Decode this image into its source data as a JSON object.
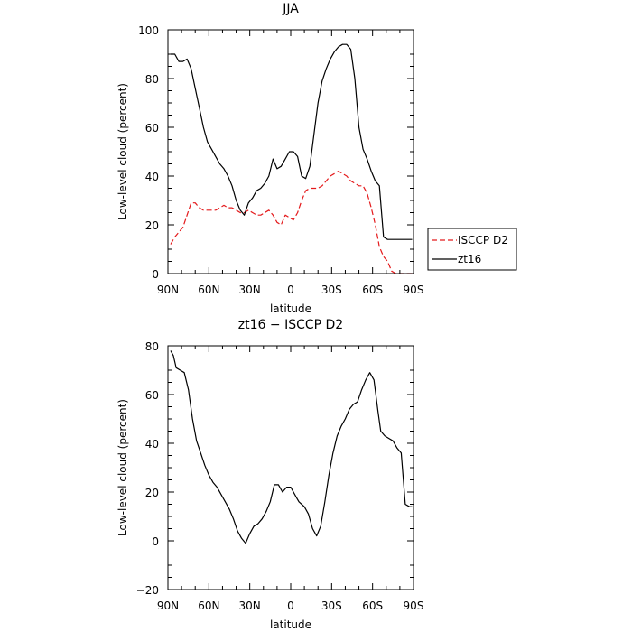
{
  "chart_data": [
    {
      "type": "line",
      "title": "JJA",
      "xlabel": "latitude",
      "ylabel": "Low-level cloud (percent)",
      "xlim": [
        90,
        -90
      ],
      "ylim": [
        0,
        100
      ],
      "x_ticks": [
        90,
        60,
        30,
        0,
        -30,
        -60,
        -90
      ],
      "x_tick_labels": [
        "90N",
        "60N",
        "30N",
        "0",
        "30S",
        "60S",
        "90S"
      ],
      "y_ticks": [
        0,
        20,
        40,
        60,
        80,
        100
      ],
      "y_tick_labels": [
        "0",
        "20",
        "40",
        "60",
        "80",
        "100"
      ],
      "legend_position": "right",
      "series": [
        {
          "name": "ISCCP D2",
          "color": "#e41a1c",
          "dash": "dashed",
          "x": [
            88,
            85,
            82,
            79,
            76,
            73,
            70,
            67,
            64,
            61,
            58,
            55,
            52,
            49,
            46,
            43,
            40,
            37,
            34,
            31,
            28,
            25,
            22,
            19,
            16,
            13,
            10,
            7,
            4,
            1,
            -2,
            -5,
            -8,
            -11,
            -14,
            -17,
            -20,
            -23,
            -26,
            -29,
            -32,
            -35,
            -38,
            -41,
            -44,
            -47,
            -50,
            -53,
            -56,
            -59,
            -62,
            -65,
            -68,
            -71,
            -74,
            -77,
            -80,
            -83,
            -86,
            -89
          ],
          "y": [
            12,
            15,
            17,
            19,
            24,
            29,
            29,
            27,
            26,
            26,
            26,
            26,
            27,
            28,
            27,
            27,
            26,
            25,
            25,
            26,
            25,
            24,
            24,
            25,
            26,
            24,
            21,
            20,
            24,
            23,
            22,
            25,
            30,
            34,
            35,
            35,
            35,
            36,
            38,
            40,
            41,
            42,
            41,
            40,
            38,
            37,
            36,
            36,
            33,
            27,
            20,
            11,
            7,
            5,
            1,
            0,
            0,
            0,
            0,
            0
          ]
        },
        {
          "name": "zt16",
          "color": "#000000",
          "dash": "solid",
          "x": [
            88,
            85,
            82,
            79,
            76,
            73,
            70,
            67,
            64,
            61,
            58,
            55,
            52,
            49,
            46,
            43,
            40,
            37,
            34,
            31,
            28,
            25,
            22,
            19,
            16,
            13,
            10,
            7,
            4,
            1,
            -2,
            -5,
            -8,
            -11,
            -14,
            -17,
            -20,
            -23,
            -26,
            -29,
            -32,
            -35,
            -38,
            -41,
            -44,
            -47,
            -50,
            -53,
            -56,
            -59,
            -62,
            -65,
            -68,
            -71,
            -74,
            -77,
            -80,
            -83,
            -86,
            -89
          ],
          "y": [
            90,
            90,
            87,
            87,
            88,
            84,
            76,
            68,
            60,
            54,
            51,
            48,
            45,
            43,
            40,
            36,
            30,
            26,
            24,
            29,
            31,
            34,
            35,
            37,
            40,
            47,
            43,
            44,
            47,
            50,
            50,
            48,
            40,
            39,
            44,
            57,
            70,
            79,
            84,
            88,
            91,
            93,
            94,
            94,
            92,
            80,
            60,
            51,
            47,
            42,
            38,
            36,
            15,
            14,
            14,
            14,
            14,
            14,
            14,
            14
          ]
        }
      ]
    },
    {
      "type": "line",
      "title": "zt16 − ISCCP D2",
      "xlabel": "latitude",
      "ylabel": "Low-level cloud (percent)",
      "xlim": [
        90,
        -90
      ],
      "ylim": [
        -20,
        80
      ],
      "x_ticks": [
        90,
        60,
        30,
        0,
        -30,
        -60,
        -90
      ],
      "x_tick_labels": [
        "90N",
        "60N",
        "30N",
        "0",
        "30S",
        "60S",
        "90S"
      ],
      "y_ticks": [
        -20,
        0,
        20,
        40,
        60,
        80
      ],
      "y_tick_labels": [
        "−20",
        "0",
        "20",
        "40",
        "60",
        "80"
      ],
      "series": [
        {
          "color": "#000000",
          "dash": "solid",
          "x": [
            88,
            86,
            84,
            81,
            78,
            75,
            72,
            69,
            66,
            63,
            60,
            57,
            54,
            51,
            48,
            45,
            42,
            39,
            36,
            33,
            30,
            27,
            24,
            21,
            18,
            15,
            12,
            9,
            6,
            3,
            0,
            -2,
            -4,
            -6,
            -8,
            -10,
            -13,
            -16,
            -19,
            -22,
            -25,
            -28,
            -31,
            -34,
            -37,
            -40,
            -43,
            -46,
            -49,
            -52,
            -55,
            -58,
            -61,
            -64,
            -66,
            -69,
            -72,
            -75,
            -78,
            -81,
            -84,
            -87,
            -89
          ],
          "y": [
            78,
            76,
            71,
            70,
            69,
            62,
            50,
            41,
            36,
            31,
            27,
            24,
            22,
            19,
            16,
            13,
            9,
            4,
            1,
            -1,
            3,
            6,
            7,
            9,
            12,
            16,
            23,
            23,
            20,
            22,
            22,
            20,
            18,
            16,
            15,
            14,
            11,
            5,
            2,
            6,
            16,
            27,
            36,
            43,
            47,
            50,
            54,
            56,
            57,
            62,
            66,
            69,
            66,
            53,
            45,
            43,
            42,
            41,
            38,
            36,
            15,
            14,
            14
          ]
        }
      ]
    }
  ]
}
